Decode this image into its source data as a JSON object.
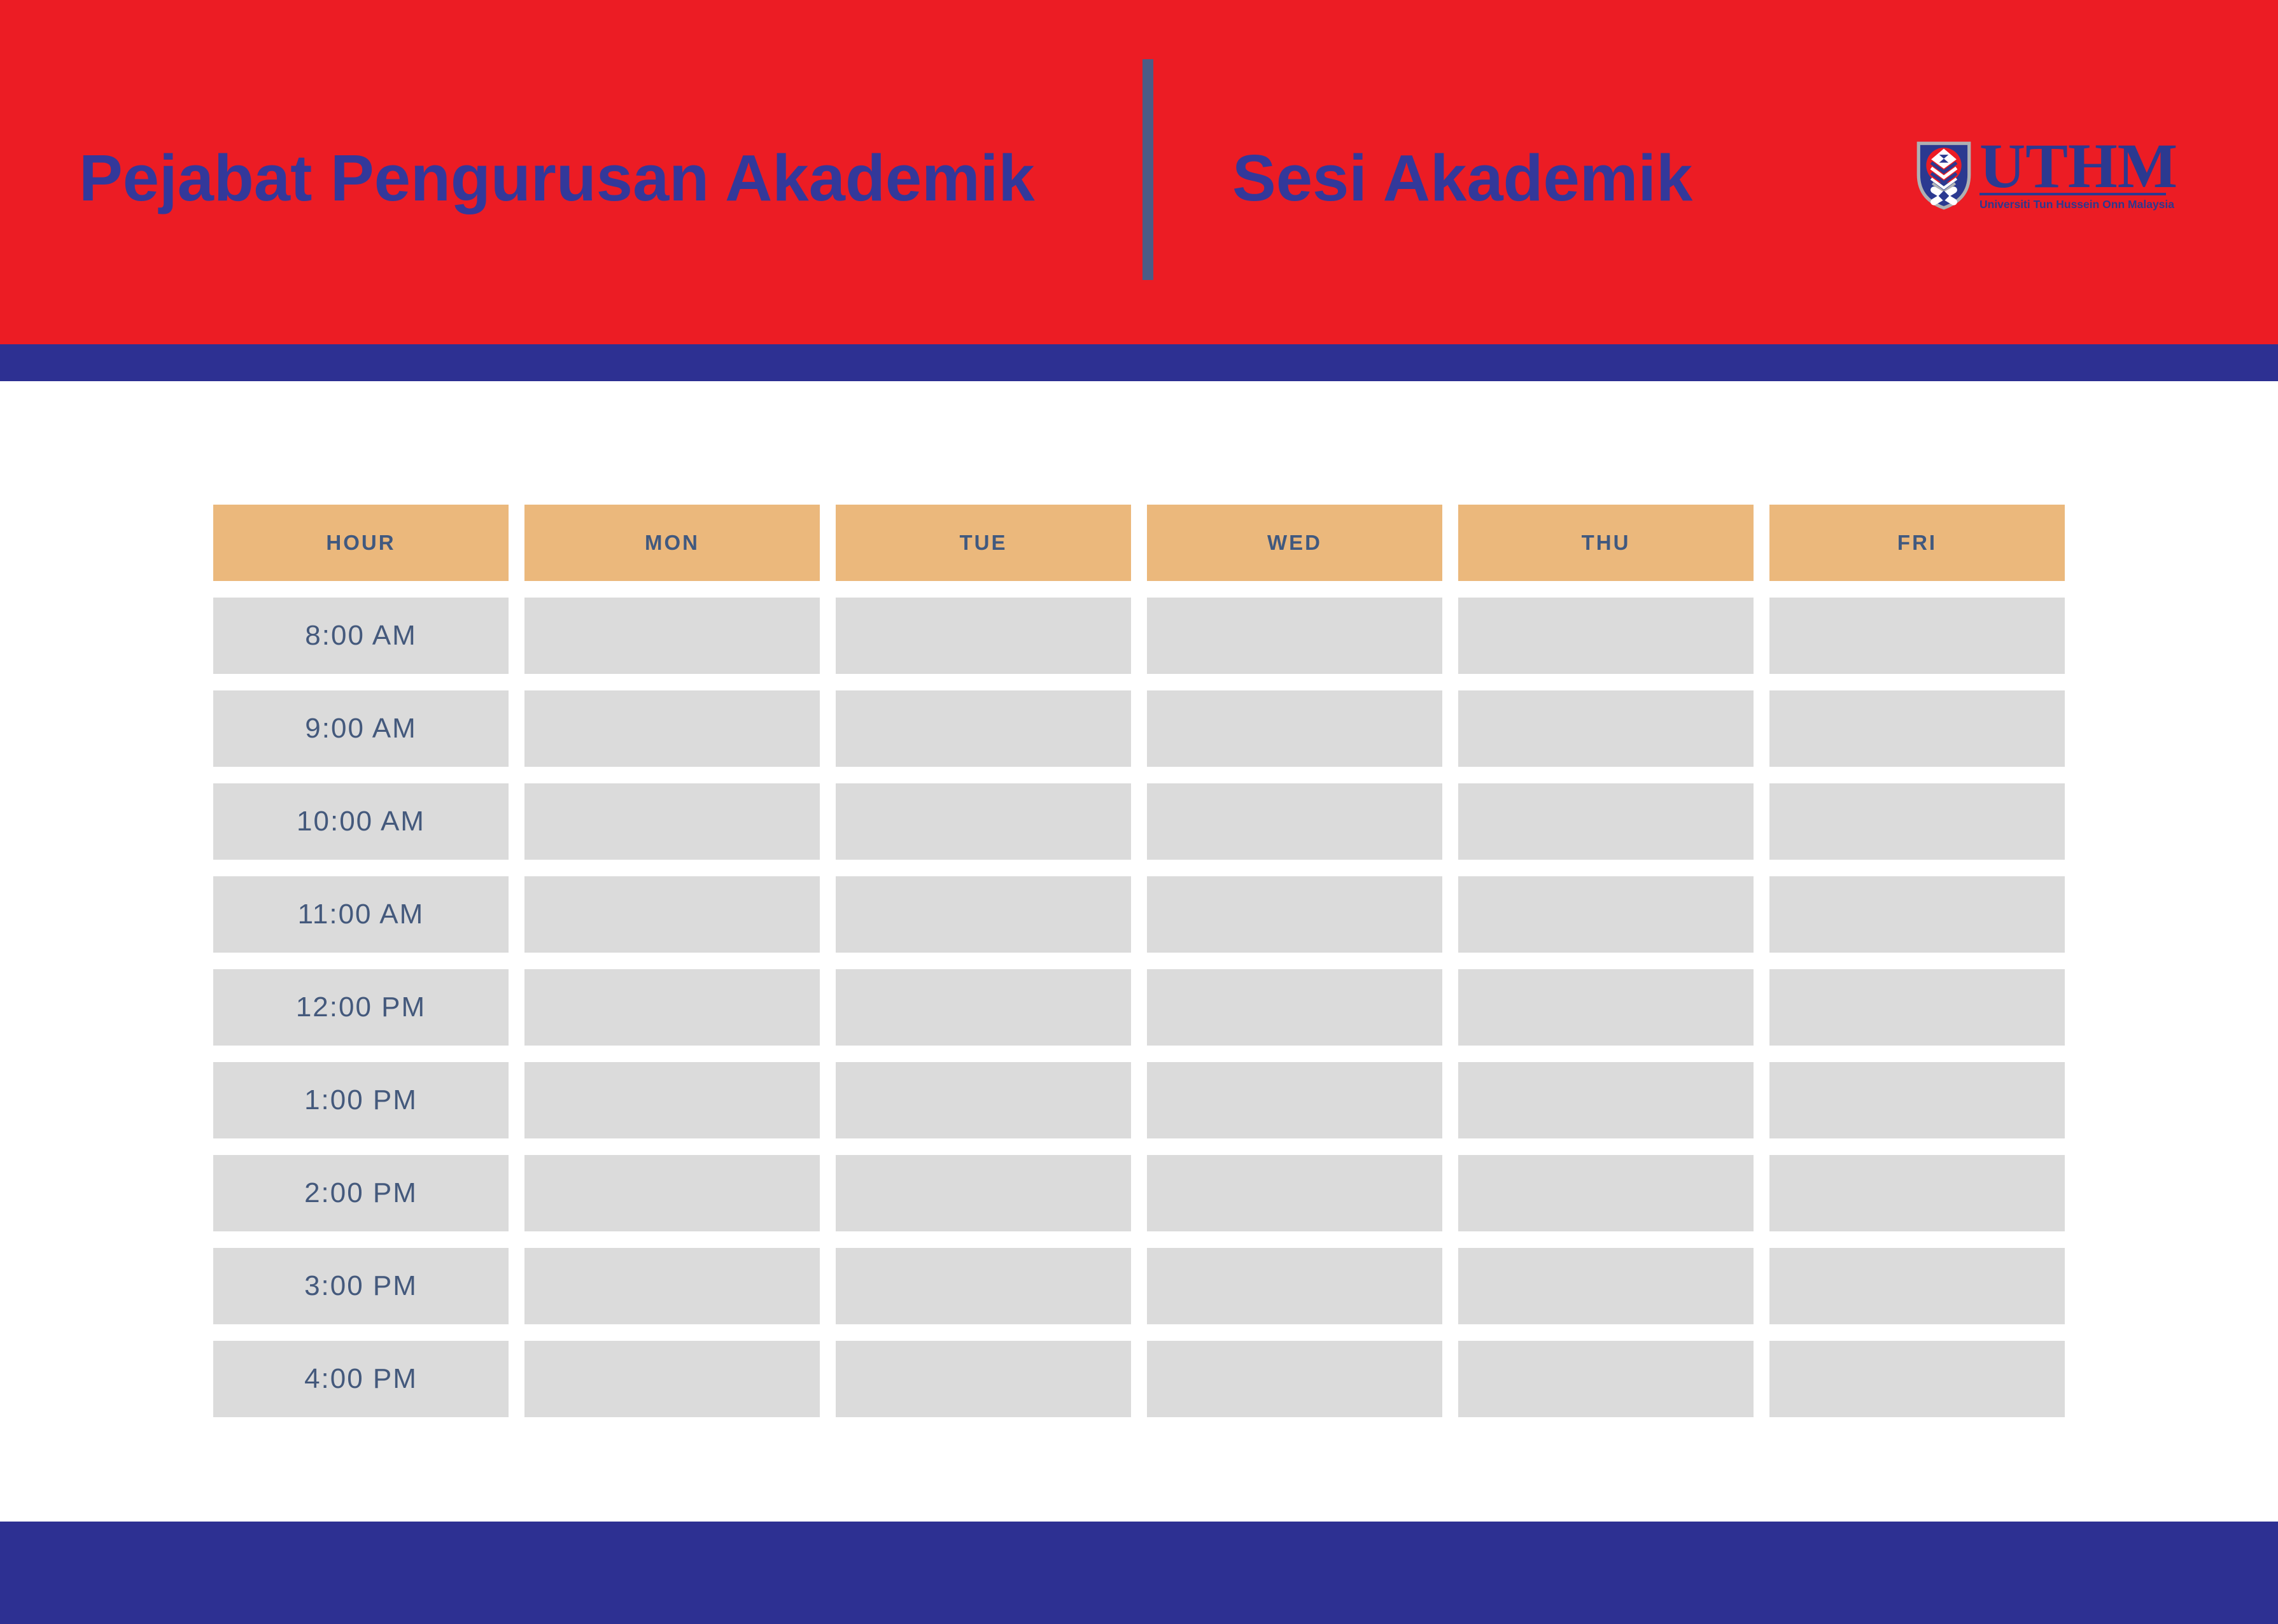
{
  "header": {
    "title_left": "Pejabat Pengurusan Akademik",
    "title_right": "Sesi Akademik",
    "logo": {
      "wordmark": "UTHM",
      "tagline": "Universiti Tun Hussein Onn Malaysia"
    }
  },
  "timetable": {
    "columns": [
      "HOUR",
      "MON",
      "TUE",
      "WED",
      "THU",
      "FRI"
    ],
    "hours": [
      "8:00 AM",
      "9:00 AM",
      "10:00 AM",
      "11:00 AM",
      "12:00 PM",
      "1:00 PM",
      "2:00 PM",
      "3:00 PM",
      "4:00 PM"
    ],
    "cells_empty": true
  },
  "colors": {
    "banner_red": "#EC1C24",
    "accent_navy": "#2D3092",
    "title_navy": "#33389A",
    "divider_slate": "#4C5C86",
    "table_header_tan": "#EBB87C",
    "table_cell_gray": "#DBDBDB",
    "table_text_slate": "#44597C",
    "logo_navy": "#2B3990",
    "logo_silver": "#AEB0B3"
  }
}
